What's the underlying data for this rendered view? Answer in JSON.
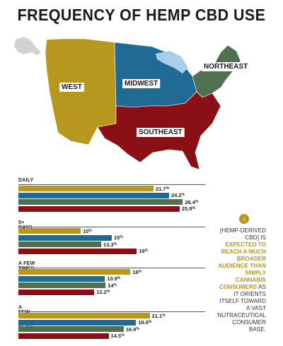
{
  "title": "FREQUENCY OF HEMP CBD USE",
  "regions": [
    {
      "name": "WEST",
      "color": "#b8971e"
    },
    {
      "name": "MIDWEST",
      "color": "#1f6b96"
    },
    {
      "name": "NORTHEAST",
      "color": "#4f7050"
    },
    {
      "name": "SOUTHEAST",
      "color": "#8b1015"
    }
  ],
  "callout": {
    "icon": "arrow-down-circle-icon",
    "part1": "[HEMP-DERIVED CBD] IS ",
    "highlight": "EXPECTED TO REACH A MUCH BROADER AUDIENCE THAN SIMPLY CANNABIS CONSUMERS",
    "part2": " AS IT ORIENTS ITSELF TOWARD A VAST NUTRACEUTICAL CONSUMER BASE."
  },
  "chart_data": {
    "type": "bar",
    "orientation": "horizontal",
    "categories": [
      "DAILY",
      "5+ DAYS PER WEEK",
      "A FEW TIMES PER MONTH",
      "A FEW TIMES PER YEAR"
    ],
    "series": [
      {
        "name": "WEST",
        "color": "#b8971e",
        "values": [
          21.7,
          10,
          18,
          21.1
        ]
      },
      {
        "name": "MIDWEST",
        "color": "#1f6b96",
        "values": [
          24.2,
          15,
          13.9,
          18.9
        ]
      },
      {
        "name": "NORTHEAST",
        "color": "#4f7050",
        "values": [
          26.4,
          13.3,
          14,
          16.9
        ]
      },
      {
        "name": "SOUTHEAST",
        "color": "#8b1015",
        "values": [
          25.9,
          19,
          12.2,
          14.5
        ]
      }
    ],
    "value_suffix": "%"
  }
}
